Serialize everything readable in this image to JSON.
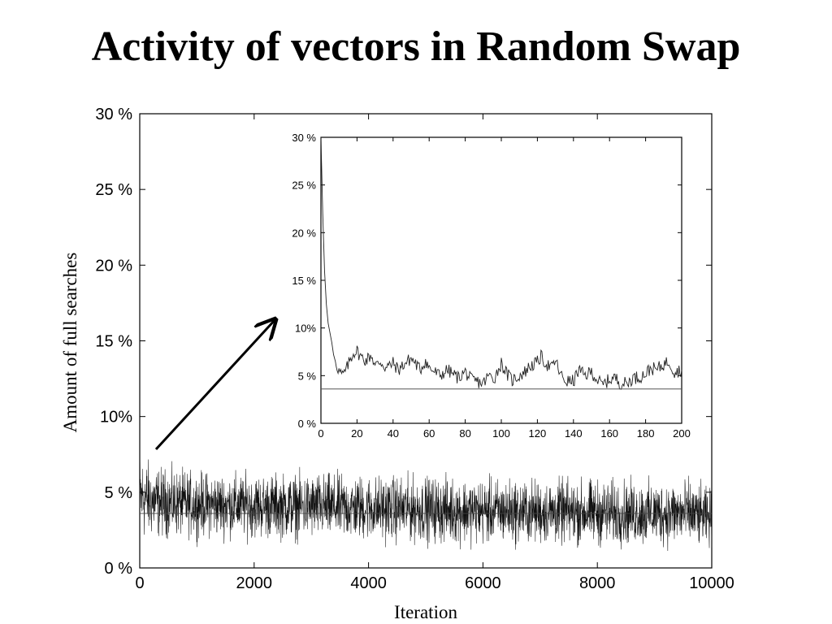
{
  "title": "Activity of vectors in Random Swap",
  "chart_data": [
    {
      "type": "line",
      "xlabel": "Iteration",
      "ylabel": "Amount of full searches",
      "xlim": [
        0,
        10000
      ],
      "ylim": [
        0,
        30
      ],
      "x_ticks": [
        0,
        2000,
        4000,
        6000,
        8000,
        10000
      ],
      "x_tick_labels": [
        "0",
        "2000",
        "4000",
        "6000",
        "8000",
        "10000"
      ],
      "y_ticks": [
        0,
        5,
        10,
        15,
        20,
        25,
        30
      ],
      "y_tick_labels": [
        "0 %",
        "5 %",
        "10%",
        "15 %",
        "20 %",
        "25 %",
        "30 %"
      ],
      "grid": false,
      "noise_band": [
        [
          0,
          1.6,
          7.9
        ],
        [
          200,
          1.9,
          6.9
        ],
        [
          500,
          2.0,
          6.6
        ],
        [
          1000,
          2.0,
          6.4
        ],
        [
          2000,
          1.9,
          6.3
        ],
        [
          3000,
          1.8,
          6.3
        ],
        [
          4000,
          1.7,
          6.2
        ],
        [
          5000,
          1.6,
          6.1
        ],
        [
          6000,
          1.5,
          6.0
        ],
        [
          7000,
          1.5,
          5.9
        ],
        [
          8000,
          1.4,
          5.9
        ],
        [
          9000,
          1.4,
          5.8
        ],
        [
          9600,
          1.3,
          5.9
        ],
        [
          10000,
          1.3,
          5.2
        ]
      ],
      "reference_line": 3.6
    },
    {
      "type": "line",
      "inset": true,
      "xlim": [
        0,
        200
      ],
      "ylim": [
        0,
        30
      ],
      "x_ticks": [
        0,
        20,
        40,
        60,
        80,
        100,
        120,
        140,
        160,
        180,
        200
      ],
      "x_tick_labels": [
        "0",
        "20",
        "40",
        "60",
        "80",
        "100",
        "120",
        "140",
        "160",
        "180",
        "200"
      ],
      "y_ticks": [
        0,
        5,
        10,
        15,
        20,
        25,
        30
      ],
      "y_tick_labels": [
        "0 %",
        "5 %",
        "10%",
        "15 %",
        "20 %",
        "25 %",
        "30 %"
      ],
      "grid": false,
      "x": [
        0,
        1,
        2,
        3,
        4,
        5,
        6,
        7,
        8,
        10,
        12,
        14,
        16,
        18,
        20,
        22,
        25,
        28,
        30,
        33,
        36,
        40,
        43,
        46,
        50,
        52,
        55,
        58,
        60,
        63,
        66,
        70,
        73,
        76,
        80,
        83,
        86,
        90,
        93,
        96,
        100,
        103,
        106,
        110,
        113,
        116,
        120,
        122,
        125,
        128,
        130,
        133,
        136,
        140,
        143,
        146,
        150,
        153,
        156,
        160,
        163,
        166,
        170,
        173,
        176,
        180,
        183,
        186,
        190,
        193,
        196,
        200
      ],
      "y": [
        30,
        22,
        16,
        12.5,
        10.5,
        9.5,
        8.5,
        7.2,
        6.5,
        5.5,
        5.0,
        5.6,
        6.6,
        7.4,
        7.6,
        7.0,
        6.6,
        7.2,
        6.0,
        6.5,
        5.8,
        6.3,
        5.6,
        6.2,
        6.8,
        6.4,
        5.6,
        6.6,
        5.8,
        5.4,
        5.0,
        5.6,
        5.2,
        4.8,
        5.4,
        4.6,
        4.4,
        4.2,
        5.0,
        4.7,
        6.3,
        5.2,
        4.5,
        5.0,
        5.4,
        6.0,
        6.4,
        7.0,
        6.2,
        5.8,
        6.6,
        5.0,
        4.4,
        4.4,
        5.6,
        5.0,
        5.4,
        4.6,
        4.0,
        4.6,
        4.8,
        4.2,
        4.2,
        4.8,
        4.8,
        5.2,
        5.8,
        5.6,
        6.2,
        6.5,
        5.4,
        5.6
      ],
      "reference_line": 3.6
    }
  ]
}
